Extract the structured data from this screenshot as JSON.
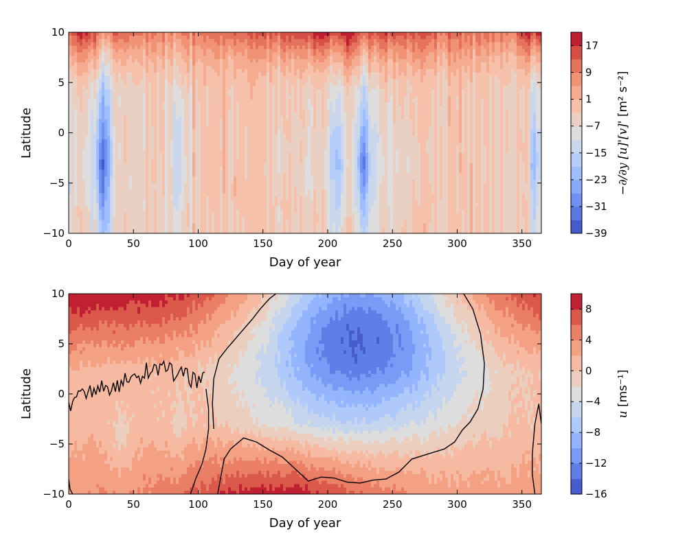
{
  "chart_data": [
    {
      "type": "heatmap",
      "subtype": "filled-contour",
      "xlabel": "Day of year",
      "ylabel": "Latitude",
      "xlim": [
        0,
        365
      ],
      "ylim": [
        -10,
        10
      ],
      "xticks": [
        "0",
        "50",
        "100",
        "150",
        "200",
        "250",
        "300",
        "350"
      ],
      "yticks": [
        "−10",
        "−5",
        "0",
        "5",
        "10"
      ],
      "colorbar": {
        "label_prefix": "−",
        "label_main": "∂/∂y [u]'[v]'",
        "label_units": " [m² s⁻²]",
        "ticks": [
          "17",
          "9",
          "1",
          "−7",
          "−15",
          "−23",
          "−31",
          "−39"
        ],
        "range": [
          -39,
          21
        ],
        "levels": 15,
        "colormap": "coolwarm"
      },
      "features": {
        "north_band_strong_positive": [
          [
            0,
            30
          ],
          [
            200,
            240
          ],
          [
            355,
            365
          ]
        ],
        "negative_streaks_days": [
          25,
          85,
          205,
          228,
          360
        ],
        "positive_background_days": [
          [
            90,
            200
          ],
          [
            240,
            340
          ]
        ]
      }
    },
    {
      "type": "heatmap",
      "subtype": "filled-contour",
      "xlabel": "Day of year",
      "ylabel": "Latitude",
      "xlim": [
        0,
        365
      ],
      "ylim": [
        -10,
        10
      ],
      "xticks": [
        "0",
        "50",
        "100",
        "150",
        "200",
        "250",
        "300",
        "350"
      ],
      "yticks": [
        "−10",
        "−5",
        "0",
        "5",
        "10"
      ],
      "colorbar": {
        "label_main": "u",
        "label_units": " [ms⁻¹]",
        "ticks": [
          "8",
          "4",
          "0",
          "−4",
          "−8",
          "−12",
          "−16"
        ],
        "range": [
          -16,
          10
        ],
        "levels": 13,
        "colormap": "coolwarm"
      },
      "zero_contour": true,
      "features": {
        "easterly_core_center": [
          225,
          5.5
        ],
        "easterly_core_min": -12,
        "westerly_max_north": 10
      }
    }
  ]
}
